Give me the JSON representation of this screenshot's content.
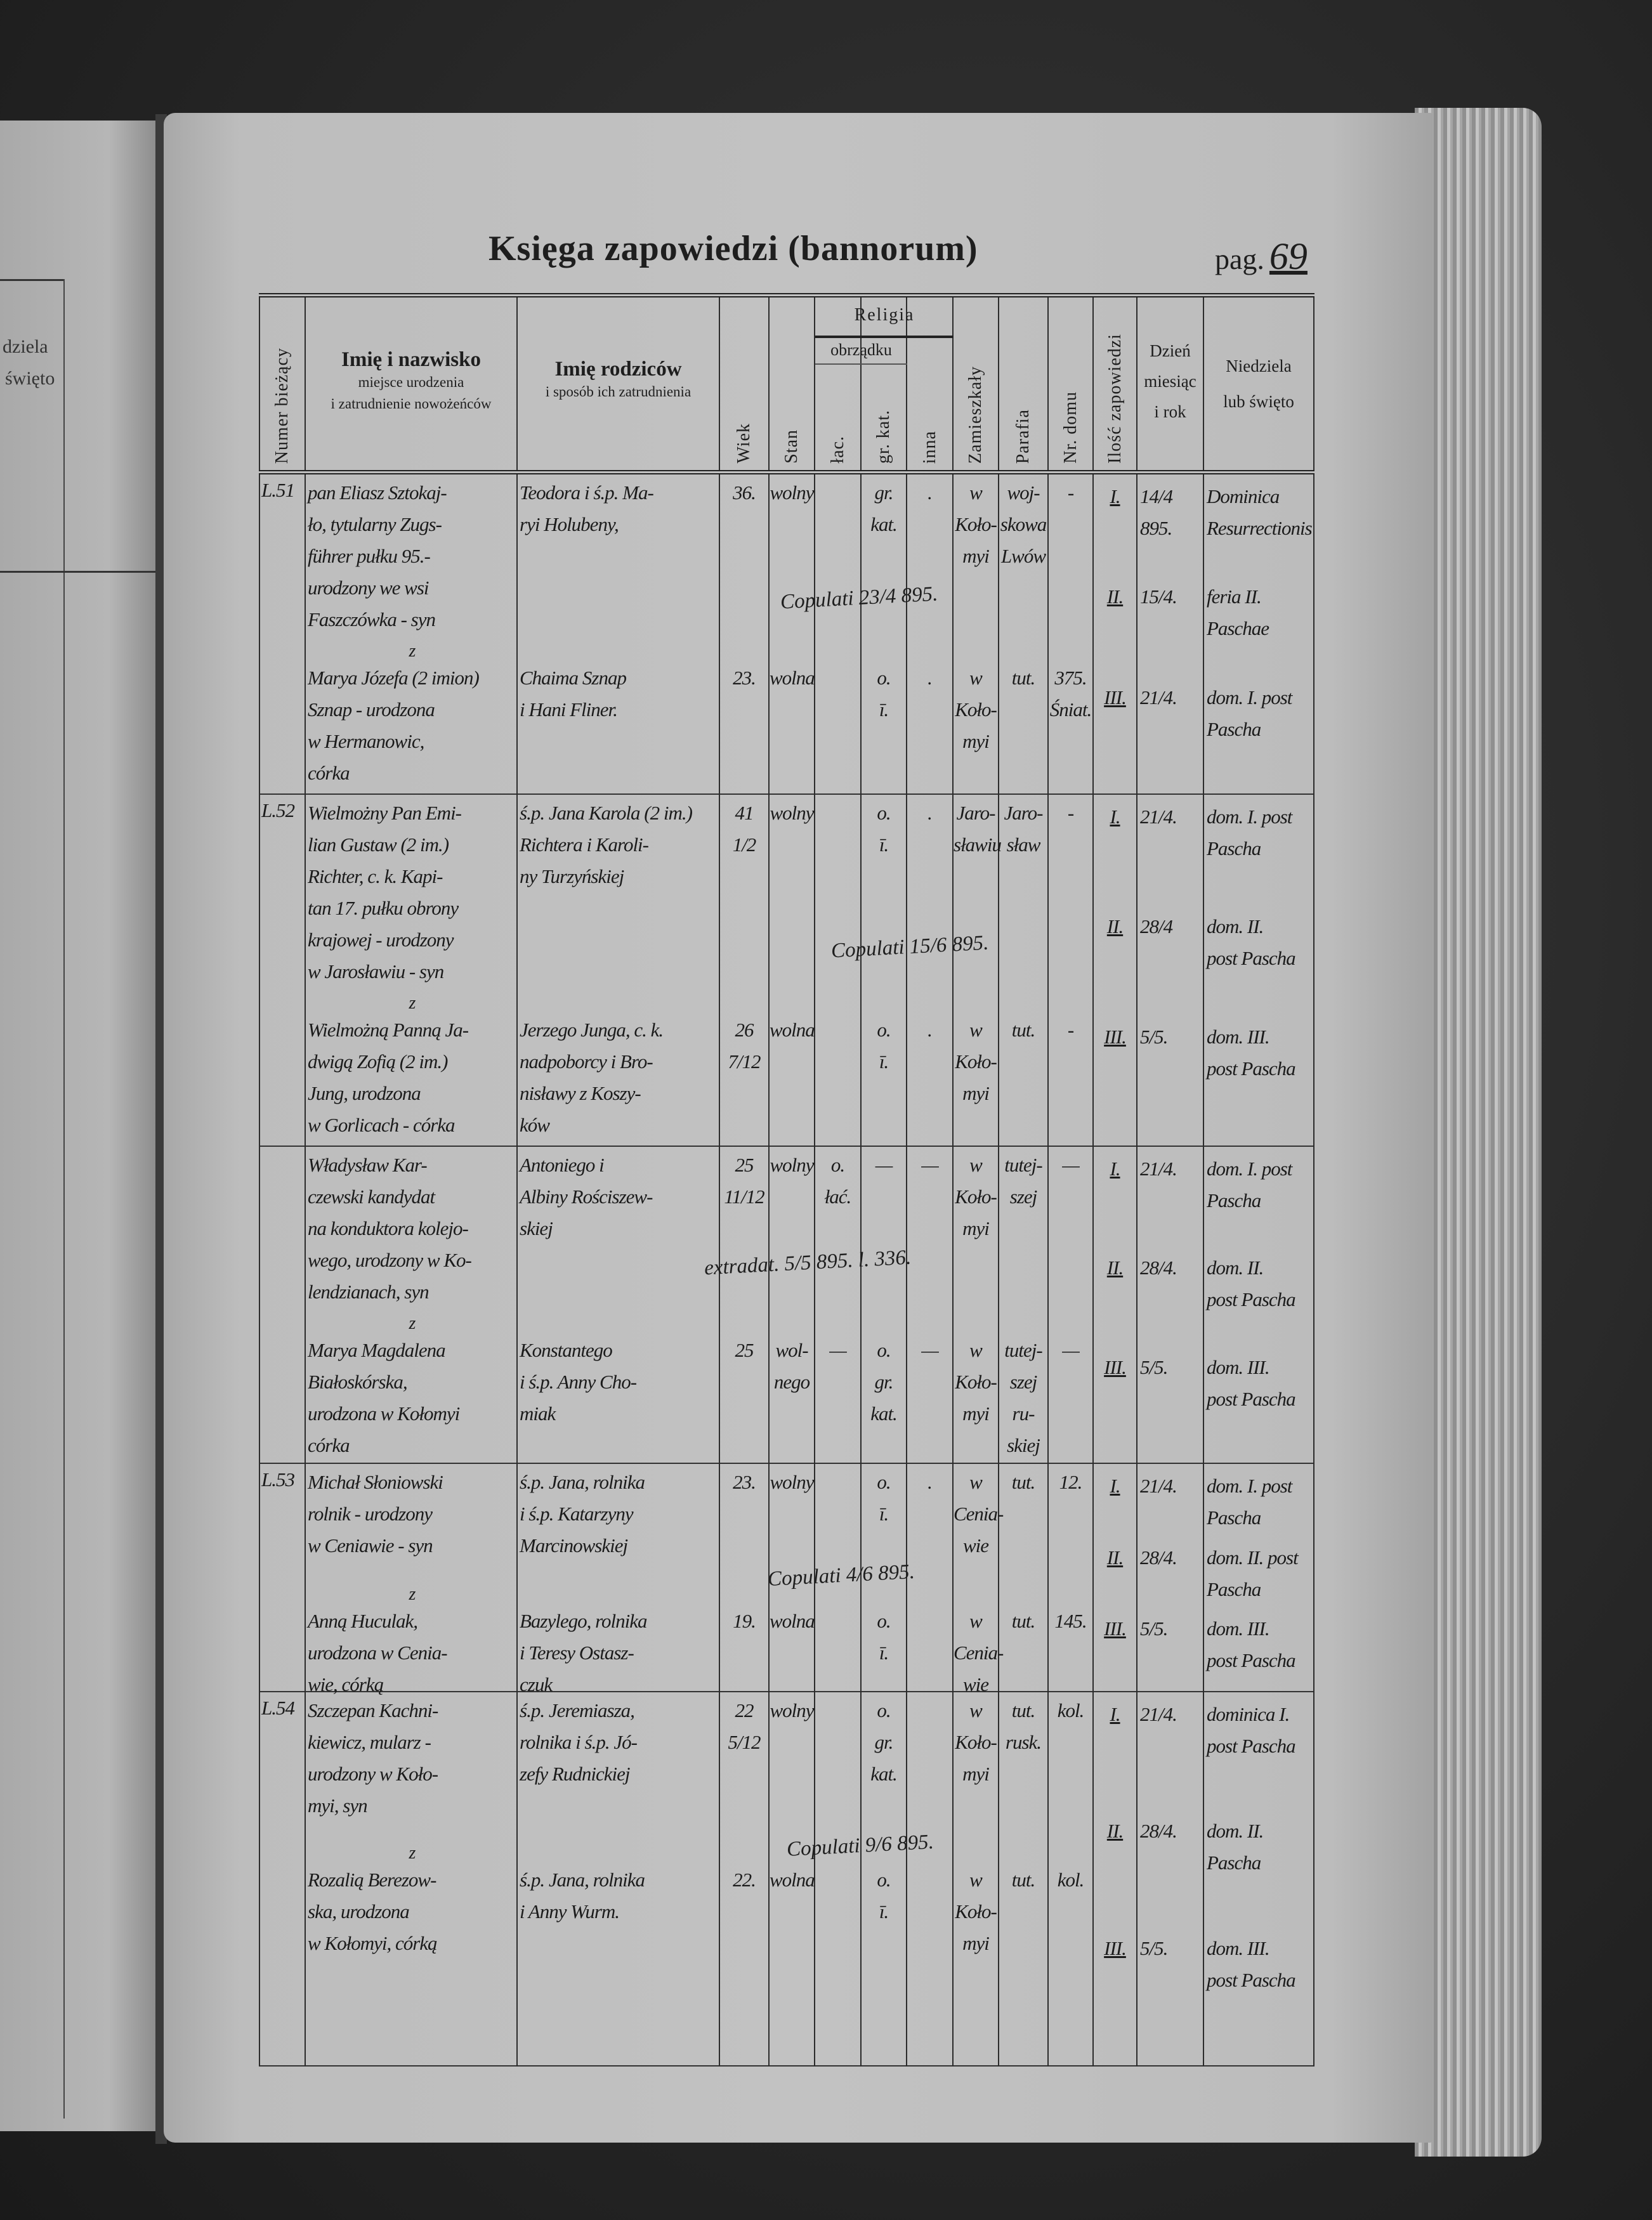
{
  "left_page": {
    "header_fragments": [
      "dziela",
      "święto"
    ]
  },
  "header": {
    "title": "Księga zapowiedzi (bannorum)",
    "pag_label": "pag.",
    "page_number": "69"
  },
  "columns": {
    "numer": "Numer bieżący",
    "imie_title": "Imię i nazwisko",
    "imie_sub1": "miejsce urodzenia",
    "imie_sub2": "i zatrudnienie nowożeńców",
    "rodzice_title": "Imię rodziców",
    "rodzice_sub": "i sposób ich zatrudnienia",
    "wiek": "Wiek",
    "stan": "Stan",
    "religia": "Religia",
    "obrzadku": "obrządku",
    "lac": "łac.",
    "grkat": "gr. kat.",
    "inna": "inna",
    "zamieszkaly": "Zamieszkały",
    "parafia": "Parafia",
    "nr_domu": "Nr. domu",
    "ilosc": "Ilość zapowiedzi",
    "dzien1": "Dzień",
    "dzien2": "miesiąc",
    "dzien3": "i rok",
    "niedziela1": "Niedziela",
    "niedziela2": "lub święto"
  },
  "entries": [
    {
      "number": "L.51",
      "conj": "z",
      "groom": {
        "names": [
          "pan Eliasz Sztokaj-",
          "ło, tytularny Zugs-",
          "führer pułku 95.-",
          "urodzony we wsi",
          "Faszczówka - syn"
        ],
        "parents": [
          "Teodora i ś.p. Ma-",
          "ryi Holubeny,"
        ],
        "age": [
          "36."
        ],
        "stan": [
          "wolny"
        ],
        "lac": [],
        "grkat": [
          "gr.",
          "kat."
        ],
        "inna": [
          "."
        ],
        "zam": [
          "w",
          "Koło-",
          "myi"
        ],
        "parafia": [
          "woj-",
          "skowa",
          "Lwów"
        ],
        "nr": [
          "-"
        ]
      },
      "bride": {
        "names": [
          "Marya Józefa (2 imion)",
          "Sznap - urodzona",
          "w Hermanowic,",
          "córka"
        ],
        "parents": [
          "Chaima Sznap",
          "i Hani Fliner."
        ],
        "age": [
          "23."
        ],
        "stan": [
          "wolna"
        ],
        "lac": [],
        "grkat": [
          "o.",
          "ī."
        ],
        "inna": [
          "."
        ],
        "zam": [
          "w",
          "Koło-",
          "myi"
        ],
        "parafia": [
          "tut."
        ],
        "nr": [
          "375.",
          "Śniat."
        ]
      },
      "note": "Copulati 23/4 895.",
      "banns": [
        {
          "n": "I.",
          "date": "14/4 895.",
          "day": [
            "Dominica",
            "Resurrectionis"
          ]
        },
        {
          "n": "II.",
          "date": "15/4.",
          "day": [
            "feria II.",
            "Paschae"
          ]
        },
        {
          "n": "III.",
          "date": "21/4.",
          "day": [
            "dom. I. post",
            "Pascha"
          ]
        }
      ]
    },
    {
      "number": "L.52",
      "conj": "z",
      "groom": {
        "names": [
          "Wielmożny Pan Emi-",
          "lian Gustaw (2 im.)",
          "Richter, c. k. Kapi-",
          "tan 17. pułku obrony",
          "krajowej - urodzony",
          "w Jarosławiu - syn"
        ],
        "parents": [
          "ś.p. Jana Karola (2 im.)",
          "Richtera i Karoli-",
          "ny Turzyńskiej"
        ],
        "age": [
          "41",
          "1/2"
        ],
        "stan": [
          "wolny"
        ],
        "lac": [],
        "grkat": [
          "o.",
          "ī."
        ],
        "inna": [
          "."
        ],
        "zam": [
          "Jaro-",
          "sławiu"
        ],
        "parafia": [
          "Jaro-",
          "sław"
        ],
        "nr": [
          "-"
        ]
      },
      "bride": {
        "names": [
          "Wielmożną Panną Ja-",
          "dwigą Zofią (2 im.)",
          "Jung, urodzona",
          "w Gorlicach - córka"
        ],
        "parents": [
          "Jerzego Junga, c. k.",
          "nadpoborcy i Bro-",
          "nisławy z Koszy-",
          "ków"
        ],
        "age": [
          "26",
          "7/12"
        ],
        "stan": [
          "wolna"
        ],
        "lac": [],
        "grkat": [
          "o.",
          "ī."
        ],
        "inna": [
          "."
        ],
        "zam": [
          "w",
          "Koło-",
          "myi"
        ],
        "parafia": [
          "tut."
        ],
        "nr": [
          "-"
        ]
      },
      "note": "Copulati 15/6 895.",
      "banns": [
        {
          "n": "I.",
          "date": "21/4.",
          "day": [
            "dom. I. post",
            "Pascha"
          ]
        },
        {
          "n": "II.",
          "date": "28/4",
          "day": [
            "dom. II.",
            "post Pascha"
          ]
        },
        {
          "n": "III.",
          "date": "5/5.",
          "day": [
            "dom. III.",
            "post Pascha"
          ]
        }
      ]
    },
    {
      "number": "",
      "conj": "z",
      "groom": {
        "names": [
          "Władysław Kar-",
          "czewski kandydat",
          "na konduktora kolejo-",
          "wego, urodzony w Ko-",
          "lendzianach, syn"
        ],
        "parents": [
          "Antoniego i",
          "Albiny Rościszew-",
          "skiej"
        ],
        "age": [
          "25",
          "11/12"
        ],
        "stan": [
          "wolny"
        ],
        "lac": [
          "o.",
          "łać."
        ],
        "grkat": [
          "—"
        ],
        "inna": [
          "—"
        ],
        "zam": [
          "w",
          "Koło-",
          "myi"
        ],
        "parafia": [
          "tutej-",
          "szej"
        ],
        "nr": [
          "—"
        ]
      },
      "bride": {
        "names": [
          "Marya Magdalena",
          "Białoskórska,",
          "urodzona w Kołomyi",
          "córka"
        ],
        "parents": [
          "Konstantego",
          "i ś.p. Anny Cho-",
          "miak"
        ],
        "age": [
          "25"
        ],
        "stan": [
          "wol-",
          "nego"
        ],
        "lac": [
          "—"
        ],
        "grkat": [
          "o.",
          "gr.",
          "kat."
        ],
        "inna": [
          "—"
        ],
        "zam": [
          "w",
          "Koło-",
          "myi"
        ],
        "parafia": [
          "tutej-",
          "szej",
          "ru-",
          "skiej"
        ],
        "nr": [
          "—"
        ]
      },
      "note": "extradat. 5/5 895. l. 336.",
      "banns": [
        {
          "n": "I.",
          "date": "21/4.",
          "day": [
            "dom. I. post",
            "Pascha"
          ]
        },
        {
          "n": "II.",
          "date": "28/4.",
          "day": [
            "dom. II.",
            "post Pascha"
          ]
        },
        {
          "n": "III.",
          "date": "5/5.",
          "day": [
            "dom. III.",
            "post Pascha"
          ]
        }
      ]
    },
    {
      "number": "L.53",
      "conj": "z",
      "groom": {
        "names": [
          "Michał Słoniowski",
          "rolnik - urodzony",
          "w Ceniawie - syn"
        ],
        "parents": [
          "ś.p. Jana, rolnika",
          "i ś.p. Katarzyny",
          "Marcinowskiej"
        ],
        "age": [
          "23."
        ],
        "stan": [
          "wolny"
        ],
        "lac": [],
        "grkat": [
          "o.",
          "ī."
        ],
        "inna": [
          "."
        ],
        "zam": [
          "w",
          "Cenia-",
          "wie"
        ],
        "parafia": [
          "tut."
        ],
        "nr": [
          "12."
        ]
      },
      "bride": {
        "names": [
          "Anną Huculak,",
          "urodzona w Cenia-",
          "wie, córką"
        ],
        "parents": [
          "Bazylego, rolnika",
          "i Teresy Ostasz-",
          "czuk"
        ],
        "age": [
          "19."
        ],
        "stan": [
          "wolna"
        ],
        "lac": [],
        "grkat": [
          "o.",
          "ī."
        ],
        "inna": [],
        "zam": [
          "w",
          "Cenia-",
          "wie"
        ],
        "parafia": [
          "tut."
        ],
        "nr": [
          "145."
        ]
      },
      "note": "Copulati 4/6 895.",
      "banns": [
        {
          "n": "I.",
          "date": "21/4.",
          "day": [
            "dom. I. post",
            "Pascha"
          ]
        },
        {
          "n": "II.",
          "date": "28/4.",
          "day": [
            "dom. II. post",
            "Pascha"
          ]
        },
        {
          "n": "III.",
          "date": "5/5.",
          "day": [
            "dom. III.",
            "post Pascha"
          ]
        }
      ]
    },
    {
      "number": "L.54",
      "conj": "z",
      "groom": {
        "names": [
          "Szczepan Kachni-",
          "kiewicz, mularz -",
          "urodzony w Koło-",
          "myi, syn"
        ],
        "parents": [
          "ś.p. Jeremiasza,",
          "rolnika i ś.p. Jó-",
          "zefy Rudnickiej"
        ],
        "age": [
          "22",
          "5/12"
        ],
        "stan": [
          "wolny"
        ],
        "lac": [],
        "grkat": [
          "o.",
          "gr.",
          "kat."
        ],
        "inna": [],
        "zam": [
          "w",
          "Koło-",
          "myi"
        ],
        "parafia": [
          "tut.",
          "rusk."
        ],
        "nr": [
          "kol."
        ]
      },
      "bride": {
        "names": [
          "Rozalią Berezow-",
          "ska, urodzona",
          "w Kołomyi, córką"
        ],
        "parents": [
          "ś.p. Jana, rolnika",
          "i Anny Wurm."
        ],
        "age": [
          "22."
        ],
        "stan": [
          "wolna"
        ],
        "lac": [],
        "grkat": [
          "o.",
          "ī."
        ],
        "inna": [],
        "zam": [
          "w",
          "Koło-",
          "myi"
        ],
        "parafia": [
          "tut."
        ],
        "nr": [
          "kol."
        ]
      },
      "note": "Copulati 9/6 895.",
      "banns": [
        {
          "n": "I.",
          "date": "21/4.",
          "day": [
            "dominica I.",
            "post Pascha"
          ]
        },
        {
          "n": "II.",
          "date": "28/4.",
          "day": [
            "dom. II.",
            "Pascha"
          ]
        },
        {
          "n": "III.",
          "date": "5/5.",
          "day": [
            "dom. III.",
            "post Pascha"
          ]
        }
      ]
    }
  ]
}
